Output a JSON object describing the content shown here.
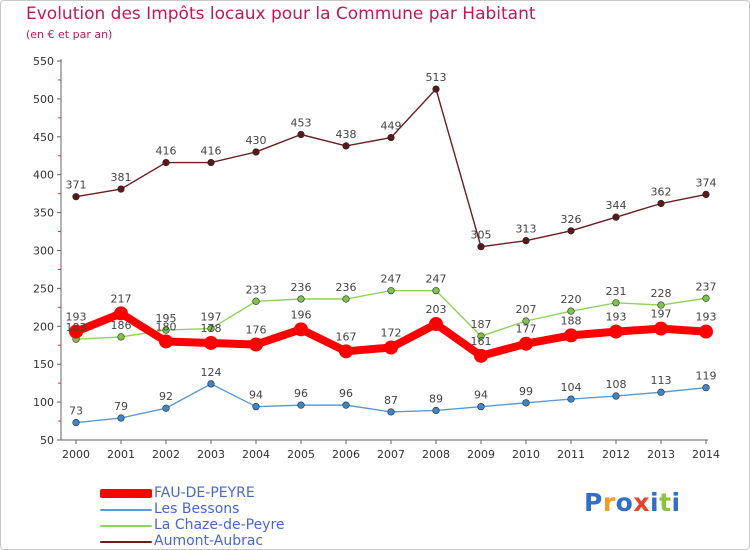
{
  "title": "Evolution des Impôts locaux pour la Commune par Habitant",
  "subtitle": "(en € et par an)",
  "logo": {
    "text": "Proxiti",
    "letters": [
      "P",
      "r",
      "o",
      "x",
      "i",
      "t",
      "i"
    ],
    "colors": [
      "#2f6fc8",
      "#f39c1f",
      "#2f6fc8",
      "#e8412c",
      "#2f6fc8",
      "#8bc53f",
      "#2f6fc8"
    ]
  },
  "chart_data": {
    "type": "line",
    "x": [
      "2000",
      "2001",
      "2002",
      "2003",
      "2004",
      "2005",
      "2006",
      "2007",
      "2008",
      "2009",
      "2010",
      "2011",
      "2012",
      "2013",
      "2014"
    ],
    "ylim": [
      50,
      550
    ],
    "yticks": [
      50,
      100,
      150,
      200,
      250,
      300,
      350,
      400,
      450,
      500,
      550
    ],
    "grid": false,
    "legend_position": "bottom-left",
    "series": [
      {
        "name": "FAU-DE-PEYRE",
        "color": "#ff0000",
        "emphasis": true,
        "values": [
          193,
          217,
          180,
          178,
          176,
          196,
          167,
          172,
          203,
          161,
          177,
          188,
          193,
          197,
          193
        ],
        "labels": [
          "193",
          "217",
          "180",
          "178",
          "176",
          "196",
          "167",
          "172",
          "203",
          "161",
          "177",
          "188",
          "193",
          "197",
          "193"
        ]
      },
      {
        "name": "Les Bessons",
        "color": "#5b9bd5",
        "emphasis": false,
        "values": [
          73,
          79,
          92,
          124,
          94,
          96,
          96,
          87,
          89,
          94,
          99,
          104,
          108,
          113,
          119
        ],
        "labels": [
          "73",
          "79",
          "92",
          "124",
          "94",
          "96",
          "96",
          "87",
          "89",
          "94",
          "99",
          "104",
          "108",
          "113",
          "119"
        ]
      },
      {
        "name": "La Chaze-de-Peyre",
        "color": "#8fd45a",
        "emphasis": false,
        "values": [
          183,
          186,
          195,
          197,
          233,
          236,
          236,
          247,
          247,
          187,
          207,
          220,
          231,
          228,
          237
        ],
        "labels": [
          "183",
          "186",
          "195",
          "197",
          "233",
          "236",
          "236",
          "247",
          "247",
          "187",
          "207",
          "220",
          "231",
          "228",
          "237"
        ]
      },
      {
        "name": "Aumont-Aubrac",
        "color": "#6b1f1f",
        "emphasis": false,
        "values": [
          371,
          381,
          416,
          416,
          430,
          453,
          438,
          449,
          513,
          305,
          313,
          326,
          344,
          362,
          374
        ],
        "labels": [
          "371",
          "381",
          "416",
          "416",
          "430",
          "453",
          "438",
          "449",
          "513",
          "305",
          "313",
          "326",
          "344",
          "362",
          "374"
        ]
      }
    ]
  }
}
